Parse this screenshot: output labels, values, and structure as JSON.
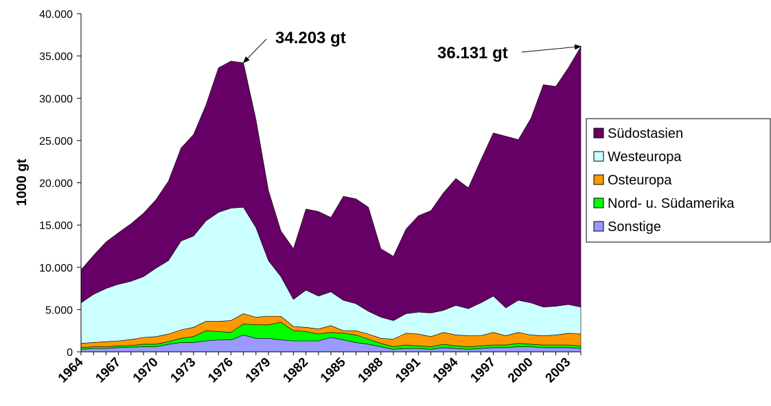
{
  "chart_data": {
    "type": "area",
    "stacked": true,
    "title": "",
    "xlabel": "",
    "ylabel": "1000 gt",
    "ylim": [
      0,
      40000
    ],
    "y_ticks": [
      "0",
      "5.000",
      "10.000",
      "15.000",
      "20.000",
      "25.000",
      "30.000",
      "35.000",
      "40.000"
    ],
    "y_tick_values": [
      0,
      5000,
      10000,
      15000,
      20000,
      25000,
      30000,
      35000,
      40000
    ],
    "x": [
      1964,
      1965,
      1966,
      1967,
      1968,
      1969,
      1970,
      1971,
      1972,
      1973,
      1974,
      1975,
      1976,
      1977,
      1978,
      1979,
      1980,
      1981,
      1982,
      1983,
      1984,
      1985,
      1986,
      1987,
      1988,
      1989,
      1990,
      1991,
      1992,
      1993,
      1994,
      1995,
      1996,
      1997,
      1998,
      1999,
      2000,
      2001,
      2002,
      2003,
      2004
    ],
    "x_tick_labels": [
      "1964",
      "1967",
      "1970",
      "1973",
      "1976",
      "1979",
      "1982",
      "1985",
      "1988",
      "1991",
      "1994",
      "1997",
      "2000",
      "2003"
    ],
    "grid": false,
    "legend_position": "right",
    "series": [
      {
        "name": "Sonstige",
        "color": "#9999ff",
        "values": [
          300,
          400,
          400,
          500,
          550,
          600,
          600,
          900,
          1100,
          1100,
          1300,
          1400,
          1400,
          2000,
          1600,
          1600,
          1400,
          1300,
          1300,
          1300,
          1700,
          1400,
          1100,
          900,
          600,
          300,
          400,
          400,
          300,
          500,
          400,
          300,
          400,
          500,
          500,
          600,
          600,
          500,
          500,
          500,
          400
        ]
      },
      {
        "name": "Nord- u. Südamerika",
        "color": "#00ff00",
        "values": [
          200,
          200,
          200,
          200,
          200,
          300,
          300,
          300,
          500,
          700,
          1200,
          1000,
          900,
          1300,
          1600,
          1600,
          2100,
          1200,
          1100,
          800,
          600,
          800,
          900,
          600,
          400,
          300,
          400,
          300,
          300,
          400,
          300,
          300,
          300,
          300,
          300,
          400,
          300,
          300,
          300,
          300,
          300
        ]
      },
      {
        "name": "Osteuropa",
        "color": "#ff9900",
        "values": [
          500,
          500,
          600,
          600,
          700,
          800,
          900,
          900,
          1000,
          1100,
          1100,
          1200,
          1400,
          1200,
          900,
          1000,
          700,
          500,
          500,
          600,
          800,
          300,
          500,
          600,
          600,
          900,
          1400,
          1400,
          1200,
          1400,
          1300,
          1300,
          1200,
          1500,
          1100,
          1300,
          1100,
          1100,
          1200,
          1400,
          1400
        ]
      },
      {
        "name": "Westeuropa",
        "color": "#ccffff",
        "values": [
          4800,
          5700,
          6300,
          6700,
          6900,
          7200,
          8100,
          8700,
          10500,
          10800,
          11900,
          12900,
          13300,
          12600,
          10600,
          6600,
          4700,
          3200,
          4400,
          3900,
          4000,
          3600,
          3200,
          2700,
          2500,
          2200,
          2300,
          2600,
          2800,
          2600,
          3500,
          3200,
          3900,
          4300,
          3300,
          3800,
          3800,
          3400,
          3400,
          3400,
          3200
        ]
      },
      {
        "name": "Südostasien",
        "color": "#660066",
        "values": [
          3900,
          4600,
          5500,
          6100,
          6800,
          7500,
          8100,
          9400,
          11000,
          12000,
          13700,
          17100,
          17400,
          17100,
          12800,
          8300,
          5400,
          6000,
          9600,
          10000,
          8800,
          12300,
          12400,
          12300,
          8100,
          7600,
          10000,
          11400,
          12100,
          13900,
          15000,
          14300,
          16900,
          19300,
          20300,
          19000,
          21800,
          26300,
          26000,
          28000,
          30800
        ]
      }
    ],
    "annotations": [
      {
        "text": "34.203 gt",
        "x": 1977,
        "y": 34203
      },
      {
        "text": "36.131 gt",
        "x": 2004,
        "y": 36131
      }
    ]
  }
}
